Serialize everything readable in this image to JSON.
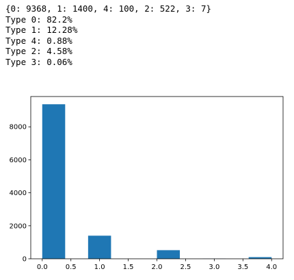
{
  "output_lines": [
    "{0: 9368, 1: 1400, 4: 100, 2: 522, 3: 7}",
    "Type 0: 82.2%",
    "Type 1: 12.28%",
    "Type 4: 0.88%",
    "Type 2: 4.58%",
    "Type 3: 0.06%"
  ],
  "chart_data": {
    "type": "bar",
    "title": "",
    "xlabel": "",
    "ylabel": "",
    "bar_color": "#1f77b4",
    "bins": [
      {
        "x0": 0.0,
        "x1": 0.4,
        "value": 9368
      },
      {
        "x0": 0.4,
        "x1": 0.8,
        "value": 0
      },
      {
        "x0": 0.8,
        "x1": 1.2,
        "value": 1400
      },
      {
        "x0": 1.2,
        "x1": 1.6,
        "value": 0
      },
      {
        "x0": 1.6,
        "x1": 2.0,
        "value": 0
      },
      {
        "x0": 2.0,
        "x1": 2.4,
        "value": 522
      },
      {
        "x0": 2.4,
        "x1": 2.8,
        "value": 0
      },
      {
        "x0": 2.8,
        "x1": 3.2,
        "value": 7
      },
      {
        "x0": 3.2,
        "x1": 3.6,
        "value": 0
      },
      {
        "x0": 3.6,
        "x1": 4.0,
        "value": 100
      }
    ],
    "xlim": [
      -0.2,
      4.2
    ],
    "ylim": [
      0,
      9836
    ],
    "x_ticks": [
      0.0,
      0.5,
      1.0,
      1.5,
      2.0,
      2.5,
      3.0,
      3.5,
      4.0
    ],
    "x_tick_labels": [
      "0.0",
      "0.5",
      "1.0",
      "1.5",
      "2.0",
      "2.5",
      "3.0",
      "3.5",
      "4.0"
    ],
    "y_ticks": [
      0,
      2000,
      4000,
      6000,
      8000
    ],
    "y_tick_labels": [
      "0",
      "2000",
      "4000",
      "6000",
      "8000"
    ],
    "grid": false,
    "legend": "none"
  }
}
